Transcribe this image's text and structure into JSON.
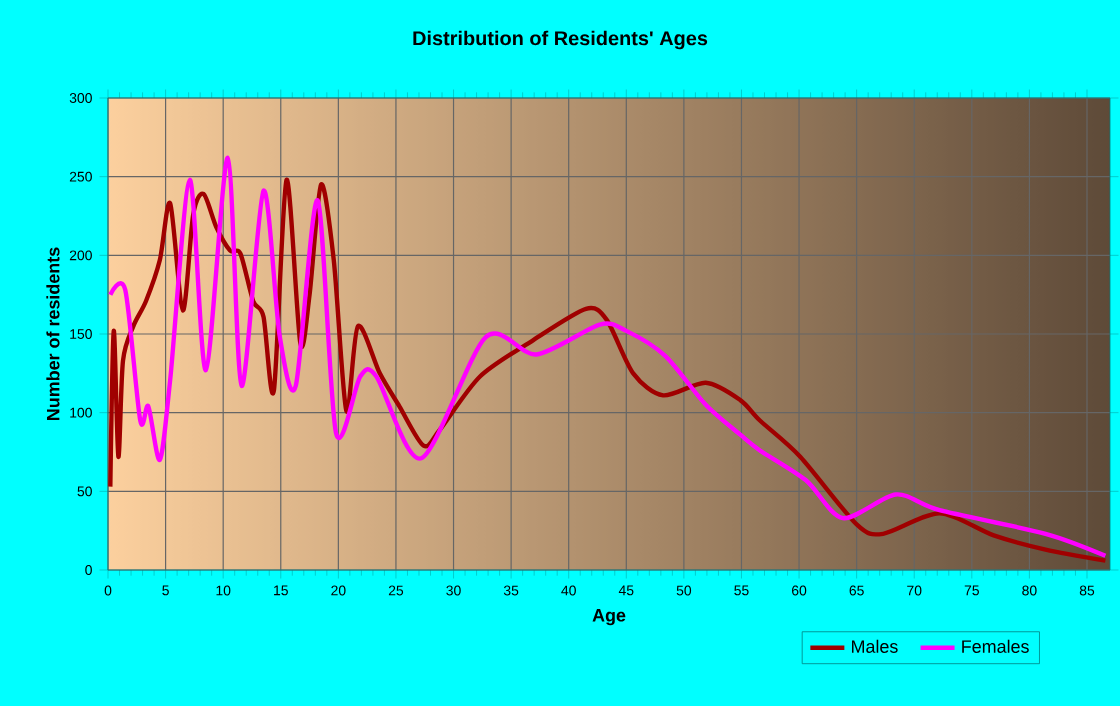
{
  "chart_data": {
    "type": "line",
    "title": "Distribution of Residents' Ages",
    "xlabel": "Age",
    "ylabel": "Number of residents",
    "xlim": [
      0,
      87
    ],
    "xticks": [
      0,
      5,
      10,
      15,
      20,
      25,
      30,
      35,
      40,
      45,
      50,
      55,
      60,
      65,
      70,
      75,
      80,
      85
    ],
    "ylim": [
      0,
      300
    ],
    "yticks": [
      0,
      50,
      100,
      150,
      200,
      250,
      300
    ],
    "grid": true,
    "legend": "bottom right",
    "marker": "none",
    "line_style": "solid",
    "series": [
      {
        "name": "Males",
        "color": "#a00000",
        "x": [
          0.2,
          0.5,
          0.9,
          1.3,
          2.2,
          3.3,
          4.5,
          5.4,
          6.5,
          7.4,
          8.3,
          9.4,
          10.6,
          11.5,
          12.6,
          13.5,
          14.4,
          15.5,
          16.7,
          17.5,
          18.5,
          19.6,
          20.7,
          21.7,
          23.6,
          25.3,
          27.4,
          28.8,
          32.3,
          36.9,
          41.5,
          43.3,
          45.6,
          48.2,
          51.9,
          54.9,
          56.6,
          60.1,
          65,
          67.3,
          72.2,
          76.9,
          81.4,
          86.6
        ],
        "values": [
          53,
          152,
          72,
          133,
          155,
          171,
          197,
          233,
          165,
          226,
          239,
          218,
          203,
          201,
          171,
          161,
          114,
          248,
          144,
          175,
          245,
          197,
          101,
          155,
          125,
          104,
          79,
          89,
          123,
          146,
          166,
          159,
          125,
          111,
          119,
          108,
          95,
          72,
          29,
          23,
          36,
          22,
          13,
          6
        ]
      },
      {
        "name": "Females",
        "color": "#ff00ff",
        "x": [
          0.2,
          1.5,
          2.8,
          3.5,
          4.5,
          5.4,
          7.1,
          8.5,
          10.4,
          11.6,
          13.5,
          14.9,
          16.3,
          18.2,
          19.8,
          21.9,
          23.3,
          27.2,
          32.8,
          37.2,
          42.7,
          45,
          48.4,
          51.9,
          54.9,
          56.6,
          60.6,
          63.8,
          68.4,
          72.2,
          81.4,
          86.6
        ],
        "values": [
          175,
          178,
          95,
          104,
          70,
          121,
          248,
          127,
          262,
          117,
          241,
          149,
          117,
          235,
          87,
          123,
          123,
          71,
          148,
          137,
          156,
          152,
          136,
          105,
          86,
          76,
          57,
          33,
          48,
          38,
          23,
          9
        ]
      }
    ]
  }
}
